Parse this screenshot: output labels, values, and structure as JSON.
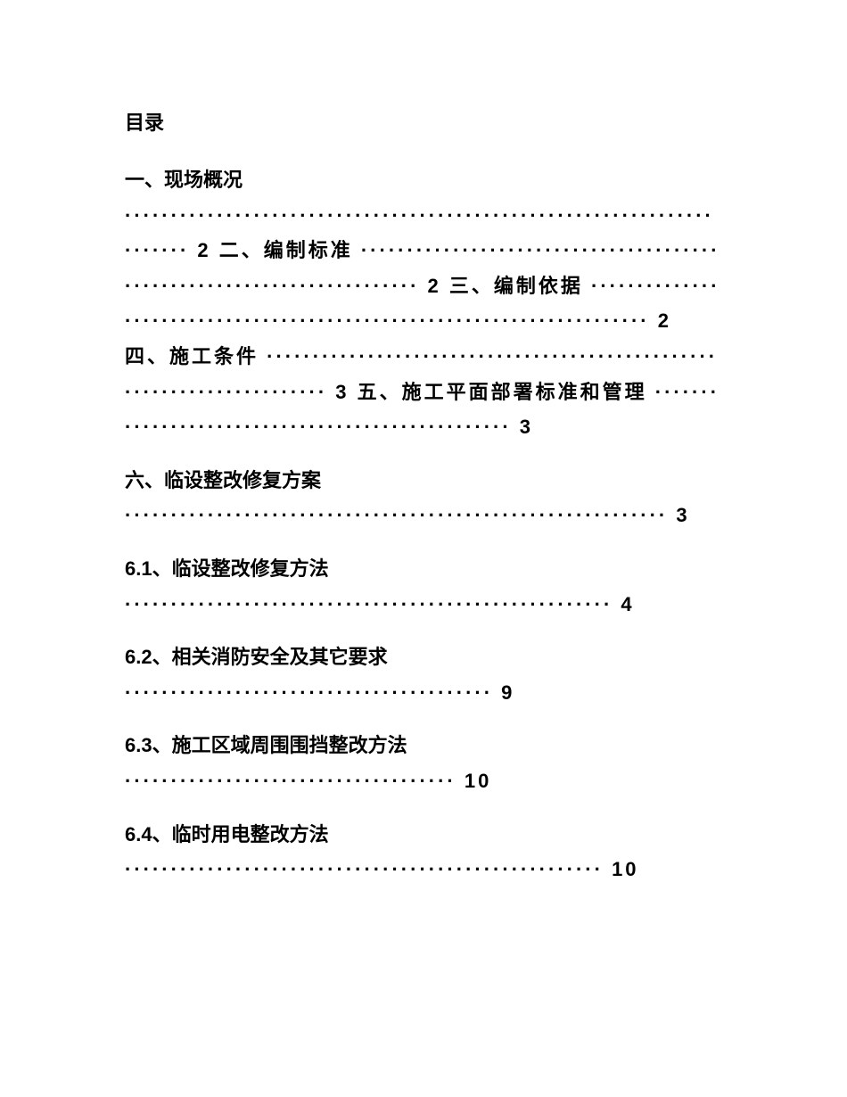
{
  "title": "目录",
  "entries": [
    {
      "heading": "一、现场概况",
      "trailing": "·································································​······ 2 二、编制标准 ·································································​······ 2 三、编制依据 ·································································​······ 2 四、施工条件 ·································································​······ 3 五、施工平面部署标准和管理 ················································· 3"
    },
    {
      "heading": "六、临设整改修复方案",
      "trailing": "··························································· 3"
    },
    {
      "heading": "6.1、临设整改修复方法",
      "trailing": "····················································· 4"
    },
    {
      "heading": "6.2、相关消防安全及其它要求",
      "trailing": "········································ 9"
    },
    {
      "heading": "6.3、施工区域周围围挡整改方法",
      "trailing": "···································· 10"
    },
    {
      "heading": "6.4、临时用电整改方法",
      "trailing": "···················································· 10"
    }
  ]
}
